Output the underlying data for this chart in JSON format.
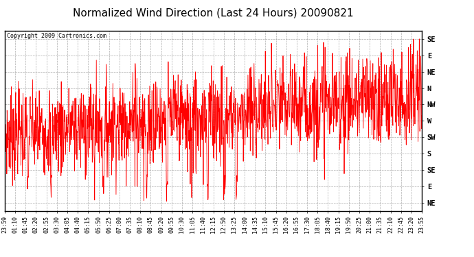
{
  "title": "Normalized Wind Direction (Last 24 Hours) 20090821",
  "copyright_text": "Copyright 2009 Cartronics.com",
  "line_color": "#ff0000",
  "bg_color": "#ffffff",
  "grid_color": "#999999",
  "ytick_labels": [
    "SE",
    "E",
    "NE",
    "N",
    "NW",
    "W",
    "SW",
    "S",
    "SE",
    "E",
    "NE"
  ],
  "ytick_values": [
    10,
    9,
    8,
    7,
    6,
    5,
    4,
    3,
    2,
    1,
    0
  ],
  "ylim": [
    -0.5,
    10.5
  ],
  "xtick_labels": [
    "23:59",
    "01:10",
    "01:45",
    "02:20",
    "02:55",
    "03:30",
    "04:05",
    "04:40",
    "05:15",
    "05:50",
    "06:25",
    "07:00",
    "07:35",
    "08:10",
    "08:45",
    "09:20",
    "09:55",
    "10:30",
    "11:05",
    "11:40",
    "12:15",
    "12:50",
    "13:25",
    "14:00",
    "14:35",
    "15:10",
    "15:45",
    "16:20",
    "16:55",
    "17:30",
    "18:05",
    "18:40",
    "19:15",
    "19:50",
    "20:25",
    "21:00",
    "21:35",
    "22:10",
    "22:45",
    "23:20",
    "23:55"
  ],
  "title_fontsize": 11,
  "copyright_fontsize": 6,
  "tick_fontsize": 6,
  "ytick_fontsize": 7.5
}
